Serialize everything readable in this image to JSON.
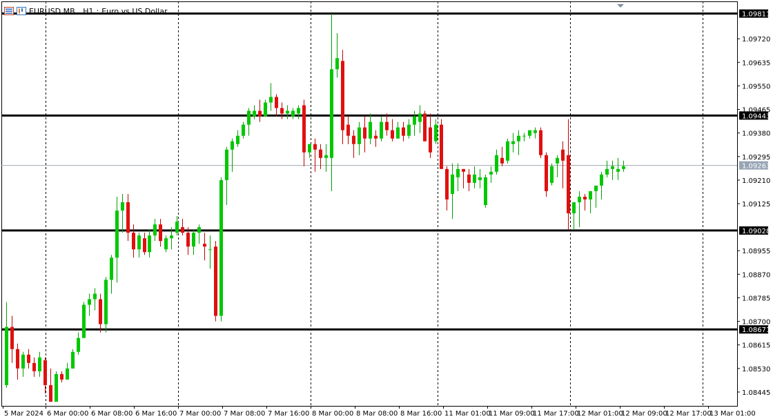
{
  "header": {
    "symbol": "EURUSD.MB",
    "timeframe": "H1",
    "description": "Euro vs US Dollar"
  },
  "colors": {
    "bull": "#00c800",
    "bear": "#e01010",
    "wick_bull": "#00a000",
    "wick_bear": "#c00000",
    "level_line": "#000000",
    "grid": "#000000",
    "bid_line": "#a0a8b0",
    "bid_tag": "#98a4b4"
  },
  "chart_data": {
    "type": "candlestick",
    "ylim": [
      1.08395,
      1.09855
    ],
    "price_ticks": [
      "1.09720",
      "1.09635",
      "1.09550",
      "1.09465",
      "1.09380",
      "1.09295",
      "1.09210",
      "1.09125",
      "1.08955",
      "1.08870",
      "1.08785",
      "1.08700",
      "1.08615",
      "1.08530",
      "1.08445"
    ],
    "levels": [
      "1.09811",
      "1.09443",
      "1.09028",
      "1.08671"
    ],
    "current_price": "1.09263",
    "time_labels": [
      "5 Mar 2024",
      "6 Mar 00:00",
      "6 Mar 08:00",
      "6 Mar 16:00",
      "7 Mar 00:00",
      "7 Mar 08:00",
      "7 Mar 16:00",
      "8 Mar 00:00",
      "8 Mar 08:00",
      "8 Mar 16:00",
      "11 Mar 01:00",
      "11 Mar 09:00",
      "11 Mar 17:00",
      "12 Mar 01:00",
      "12 Mar 09:00",
      "12 Mar 17:00",
      "13 Mar 01:00"
    ],
    "candles": [
      [
        1.0847,
        1.0877,
        1.0846,
        1.0868
      ],
      [
        1.0868,
        1.0872,
        1.0855,
        1.086
      ],
      [
        1.086,
        1.0862,
        1.0849,
        1.0853
      ],
      [
        1.0853,
        1.0859,
        1.085,
        1.0858
      ],
      [
        1.0858,
        1.086,
        1.0853,
        1.0855
      ],
      [
        1.0855,
        1.0857,
        1.085,
        1.0852
      ],
      [
        1.0852,
        1.0859,
        1.085,
        1.0857
      ],
      [
        1.0856,
        1.0857,
        1.0844,
        1.0847
      ],
      [
        1.0847,
        1.0853,
        1.0841,
        1.0841
      ],
      [
        1.0841,
        1.0852,
        1.0841,
        1.0851
      ],
      [
        1.0851,
        1.0852,
        1.0848,
        1.0849
      ],
      [
        1.0849,
        1.0855,
        1.0849,
        1.0853
      ],
      [
        1.0853,
        1.086,
        1.0853,
        1.0859
      ],
      [
        1.0859,
        1.0866,
        1.0858,
        1.0864
      ],
      [
        1.0864,
        1.0877,
        1.0864,
        1.0876
      ],
      [
        1.0876,
        1.088,
        1.0872,
        1.0878
      ],
      [
        1.0878,
        1.0882,
        1.0874,
        1.088
      ],
      [
        1.0878,
        1.088,
        1.0866,
        1.0869
      ],
      [
        1.0869,
        1.0886,
        1.0866,
        1.0885
      ],
      [
        1.0885,
        1.0894,
        1.088,
        1.0893
      ],
      [
        1.0893,
        1.0915,
        1.0884,
        1.091
      ],
      [
        1.091,
        1.0916,
        1.0902,
        1.0913
      ],
      [
        1.0913,
        1.0916,
        1.0899,
        1.0902
      ],
      [
        1.0902,
        1.0905,
        1.0893,
        1.0896
      ],
      [
        1.0896,
        1.0902,
        1.0893,
        1.0901
      ],
      [
        1.09,
        1.0902,
        1.0894,
        1.0895
      ],
      [
        1.0895,
        1.0903,
        1.0893,
        1.0901
      ],
      [
        1.0901,
        1.0907,
        1.0899,
        1.0905
      ],
      [
        1.0905,
        1.0907,
        1.0897,
        1.0899
      ],
      [
        1.0896,
        1.0901,
        1.0895,
        1.09
      ],
      [
        1.09,
        1.0904,
        1.0896,
        1.0901
      ],
      [
        1.0902,
        1.0908,
        1.0901,
        1.0906
      ],
      [
        1.0904,
        1.0907,
        1.0901,
        1.0902
      ],
      [
        1.0902,
        1.0904,
        1.0894,
        1.0897
      ],
      [
        1.0897,
        1.0903,
        1.0894,
        1.0902
      ],
      [
        1.0902,
        1.0905,
        1.0898,
        1.0904
      ],
      [
        1.0898,
        1.0902,
        1.0892,
        1.0897
      ],
      [
        1.0896,
        1.0901,
        1.0889,
        1.0896
      ],
      [
        1.0897,
        1.0899,
        1.087,
        1.0872
      ],
      [
        1.0872,
        1.0922,
        1.087,
        1.0921
      ],
      [
        1.0921,
        1.0933,
        1.0912,
        1.0932
      ],
      [
        1.0932,
        1.0936,
        1.0924,
        1.0935
      ],
      [
        1.0934,
        1.0939,
        1.0933,
        1.0937
      ],
      [
        1.0937,
        1.0942,
        1.0936,
        1.0941
      ],
      [
        1.0941,
        1.0947,
        1.0937,
        1.0946
      ],
      [
        1.0944,
        1.0948,
        1.0943,
        1.0946
      ],
      [
        1.0946,
        1.095,
        1.0942,
        1.0944
      ],
      [
        1.0944,
        1.095,
        1.0944,
        1.0949
      ],
      [
        1.0949,
        1.0956,
        1.0946,
        1.0951
      ],
      [
        1.0951,
        1.0952,
        1.0944,
        1.0947
      ],
      [
        1.0947,
        1.0949,
        1.0943,
        1.0945
      ],
      [
        1.0945,
        1.0948,
        1.0943,
        1.0946
      ],
      [
        1.0944,
        1.0947,
        1.0943,
        1.0946
      ],
      [
        1.0945,
        1.0948,
        1.0943,
        1.0947
      ],
      [
        1.0948,
        1.095,
        1.0926,
        1.0931
      ],
      [
        1.0931,
        1.0934,
        1.0929,
        1.0934
      ],
      [
        1.0934,
        1.0936,
        1.0924,
        1.0932
      ],
      [
        1.0932,
        1.0934,
        1.0925,
        1.0929
      ],
      [
        1.0929,
        1.0934,
        1.0924,
        1.093
      ],
      [
        1.0929,
        1.0981,
        1.0917,
        1.0961
      ],
      [
        1.0961,
        1.0974,
        1.0958,
        1.0965
      ],
      [
        1.0964,
        1.0968,
        1.0934,
        1.0939
      ],
      [
        1.0941,
        1.0944,
        1.0934,
        1.0937
      ],
      [
        1.0937,
        1.0939,
        1.0929,
        1.0934
      ],
      [
        1.0934,
        1.0942,
        1.093,
        1.094
      ],
      [
        1.094,
        1.0944,
        1.0931,
        1.0936
      ],
      [
        1.0936,
        1.0945,
        1.0934,
        1.0942
      ],
      [
        1.0937,
        1.0939,
        1.0933,
        1.0936
      ],
      [
        1.0936,
        1.0944,
        1.0935,
        1.0942
      ],
      [
        1.0942,
        1.0945,
        1.0937,
        1.0939
      ],
      [
        1.0939,
        1.0943,
        1.0935,
        1.0936
      ],
      [
        1.0936,
        1.0942,
        1.0936,
        1.094
      ],
      [
        1.094,
        1.0942,
        1.0935,
        1.0937
      ],
      [
        1.0937,
        1.0943,
        1.0936,
        1.0941
      ],
      [
        1.0941,
        1.0946,
        1.0937,
        1.0944
      ],
      [
        1.0942,
        1.0948,
        1.0938,
        1.0945
      ],
      [
        1.0945,
        1.0946,
        1.0935,
        1.0935
      ],
      [
        1.094,
        1.0945,
        1.0929,
        1.0931
      ],
      [
        1.0935,
        1.0943,
        1.0934,
        1.0941
      ],
      [
        1.0941,
        1.0943,
        1.0925,
        1.0925
      ],
      [
        1.0925,
        1.0926,
        1.091,
        1.0914
      ],
      [
        1.0916,
        1.0927,
        1.0907,
        1.0923
      ],
      [
        1.0922,
        1.0927,
        1.0917,
        1.0925
      ],
      [
        1.0925,
        1.0925,
        1.0918,
        1.0924
      ],
      [
        1.0923,
        1.0925,
        1.0917,
        1.092
      ],
      [
        1.092,
        1.0926,
        1.0918,
        1.0923
      ],
      [
        1.0921,
        1.0925,
        1.0918,
        1.0922
      ],
      [
        1.0912,
        1.0923,
        1.0911,
        1.0922
      ],
      [
        1.0923,
        1.0926,
        1.092,
        1.0924
      ],
      [
        1.0924,
        1.0932,
        1.0923,
        1.093
      ],
      [
        1.0929,
        1.0933,
        1.0926,
        1.0927
      ],
      [
        1.0928,
        1.0936,
        1.0927,
        1.0935
      ],
      [
        1.0934,
        1.0938,
        1.0931,
        1.0935
      ],
      [
        1.0935,
        1.0939,
        1.093,
        1.0937
      ],
      [
        1.0937,
        1.0938,
        1.0935,
        1.0937
      ],
      [
        1.0937,
        1.0939,
        1.0936,
        1.0939
      ],
      [
        1.0938,
        1.094,
        1.0936,
        1.0939
      ],
      [
        1.0939,
        1.094,
        1.0929,
        1.093
      ],
      [
        1.093,
        1.0931,
        1.0915,
        1.0917
      ],
      [
        1.092,
        1.0927,
        1.0919,
        1.0926
      ],
      [
        1.0927,
        1.093,
        1.0922,
        1.0929
      ],
      [
        1.0932,
        1.0935,
        1.0918,
        1.0928
      ],
      [
        1.093,
        1.0943,
        1.0903,
        1.0909
      ],
      [
        1.0909,
        1.0913,
        1.0903,
        1.0913
      ],
      [
        1.0913,
        1.0917,
        1.0904,
        1.0915
      ],
      [
        1.0915,
        1.0916,
        1.091,
        1.0914
      ],
      [
        1.0914,
        1.0917,
        1.0909,
        1.0917
      ],
      [
        1.0917,
        1.0919,
        1.0911,
        1.0919
      ],
      [
        1.0919,
        1.0924,
        1.0914,
        1.0923
      ],
      [
        1.0923,
        1.0928,
        1.0922,
        1.0925
      ],
      [
        1.0925,
        1.0928,
        1.0921,
        1.0926
      ],
      [
        1.0924,
        1.0929,
        1.0921,
        1.0925
      ],
      [
        1.0925,
        1.0928,
        1.0924,
        1.0926
      ]
    ]
  }
}
